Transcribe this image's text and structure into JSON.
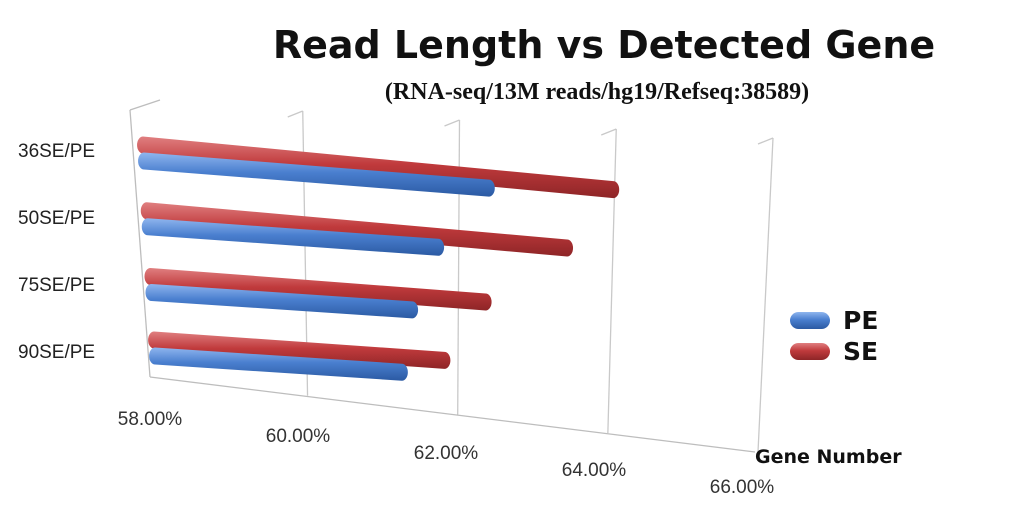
{
  "chart_data": {
    "type": "bar",
    "orientation": "horizontal",
    "title": "Read Length vs Detected Gene",
    "subtitle": "(RNA-seq/13M reads/hg19/Refseq:38589)",
    "categories": [
      "36SE/PE",
      "50SE/PE",
      "75SE/PE",
      "90SE/PE"
    ],
    "series": [
      {
        "name": "PE",
        "color": "#4a7fcf",
        "values": [
          62.4,
          61.8,
          61.5,
          61.4
        ]
      },
      {
        "name": "SE",
        "color": "#c03a3c",
        "values": [
          64.0,
          63.5,
          62.5,
          62.0
        ]
      }
    ],
    "xlim": [
      58,
      66
    ],
    "x_ticks": [
      58,
      60,
      62,
      64,
      66
    ],
    "x_tick_labels": [
      "58.00%",
      "60.00%",
      "62.00%",
      "64.00%",
      "66.00%"
    ],
    "xlabel": "Gene Number",
    "ylabel": "",
    "grid": true,
    "legend_position": "right"
  }
}
